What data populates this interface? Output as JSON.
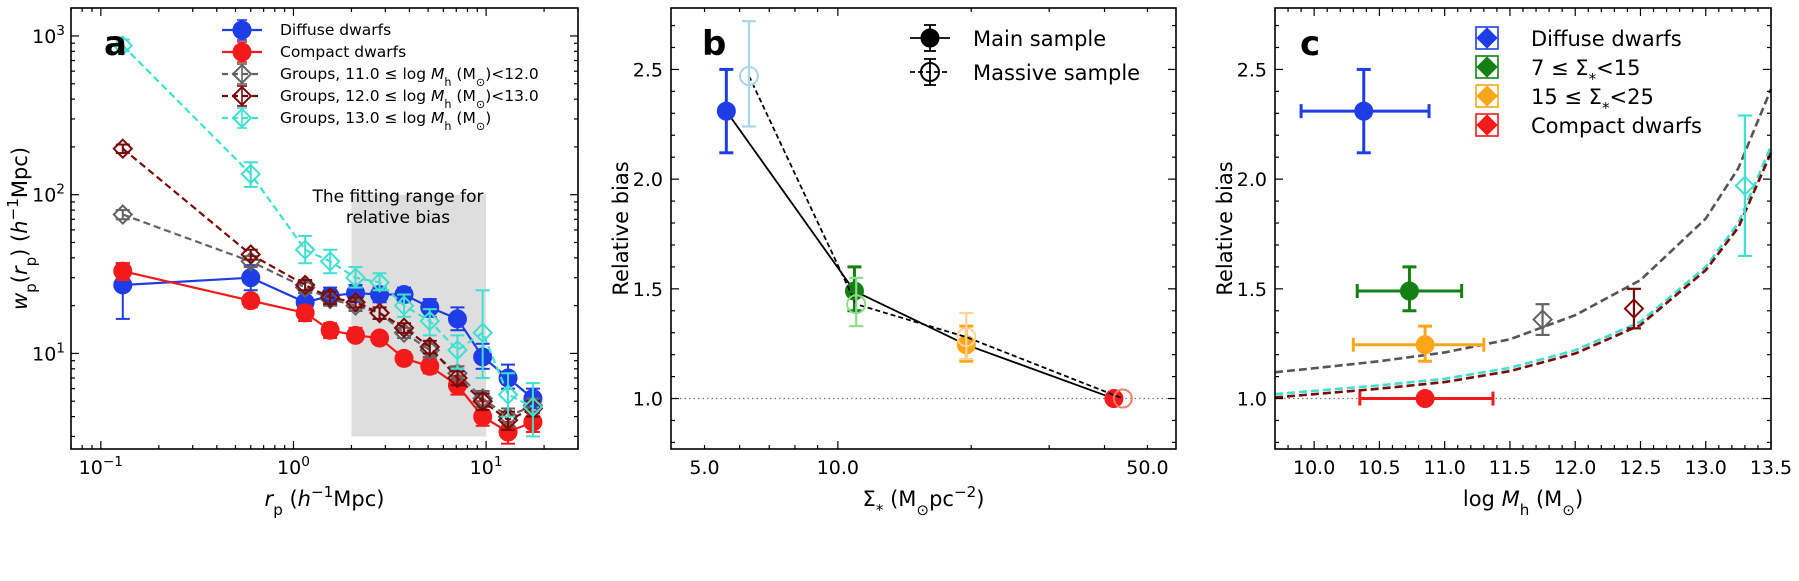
{
  "chart_data": [
    {
      "panel": "a",
      "type": "line",
      "xscale": "log",
      "yscale": "log",
      "xlim": [
        0.07,
        30
      ],
      "ylim": [
        2.5,
        1500
      ],
      "xticks": [
        {
          "v": 0.1,
          "label": "10⁻¹"
        },
        {
          "v": 1,
          "label": "10⁰"
        },
        {
          "v": 10,
          "label": "10¹"
        }
      ],
      "yticks": [
        {
          "v": 10,
          "label": "10¹"
        },
        {
          "v": 100,
          "label": "10²"
        },
        {
          "v": 1000,
          "label": "10³"
        }
      ],
      "xlabel": "r_p (h⁻¹Mpc)",
      "ylabel": "w_p(r_p) (h⁻¹Mpc)",
      "legend_position": "top-right",
      "annotation": {
        "line1": "The fitting range for",
        "line2": "relative bias",
        "x_range": [
          2,
          10
        ],
        "y_range": [
          3,
          100
        ]
      },
      "series": [
        {
          "name": "Diffuse dwarfs",
          "color": "#1f3de6",
          "marker": "filled-circle",
          "dash": "solid",
          "points": [
            [
              0.13,
              27,
              16.5,
              37
            ],
            [
              0.6,
              30,
              25,
              36
            ],
            [
              1.15,
              21,
              17.5,
              24
            ],
            [
              1.55,
              23,
              20,
              26
            ],
            [
              2.1,
              24,
              21,
              27
            ],
            [
              2.8,
              23.5,
              21,
              26
            ],
            [
              3.75,
              23.5,
              21,
              26
            ],
            [
              5.1,
              19.5,
              17,
              22
            ],
            [
              7.1,
              16.5,
              14,
              19.5
            ],
            [
              9.6,
              9.5,
              8,
              11.5
            ],
            [
              13,
              7,
              6,
              8.5
            ],
            [
              17.5,
              5.2,
              4.5,
              6
            ]
          ]
        },
        {
          "name": "Compact dwarfs",
          "color": "#f21a1a",
          "marker": "filled-circle",
          "dash": "solid",
          "points": [
            [
              0.13,
              33,
              29,
              37
            ],
            [
              0.6,
              21.5,
              19.5,
              23.5
            ],
            [
              1.15,
              18,
              16,
              20
            ],
            [
              1.55,
              14,
              12.5,
              15.5
            ],
            [
              2.1,
              13,
              12,
              14.5
            ],
            [
              2.8,
              12.5,
              11.5,
              13.5
            ],
            [
              3.75,
              9.3,
              8.5,
              10.2
            ],
            [
              5.1,
              8.3,
              7.5,
              9.2
            ],
            [
              7.1,
              6.3,
              5.5,
              7.2
            ],
            [
              9.6,
              4,
              3.5,
              5
            ],
            [
              13,
              3.2,
              2.7,
              3.7
            ],
            [
              17.5,
              3.7,
              3.2,
              4.3
            ]
          ]
        },
        {
          "name": "Groups, 11.0 ≤ log M_h (M☉)<12.0",
          "color": "#636363",
          "marker": "open-diamond",
          "dash": "dashed",
          "points": [
            [
              0.13,
              75,
              70,
              80
            ],
            [
              0.6,
              38,
              35,
              41
            ],
            [
              1.15,
              26,
              24,
              28
            ],
            [
              1.55,
              22,
              20,
              24
            ],
            [
              2.1,
              20,
              18.5,
              21.5
            ],
            [
              2.8,
              18,
              16.5,
              19.5
            ],
            [
              3.75,
              13.5,
              12.5,
              14.5
            ],
            [
              5.1,
              10.5,
              9.5,
              11.5
            ],
            [
              7.1,
              7.5,
              6.8,
              8.3
            ],
            [
              9.6,
              5.2,
              4.6,
              5.8
            ],
            [
              13,
              4,
              3.5,
              4.5
            ],
            [
              17.5,
              4.7,
              4.2,
              5.2
            ]
          ]
        },
        {
          "name": "Groups, 12.0 ≤ log M_h (M☉)<13.0",
          "color": "#7a0a0a",
          "marker": "open-diamond",
          "dash": "dashed",
          "points": [
            [
              0.13,
              195,
              183,
              207
            ],
            [
              0.6,
              42,
              39,
              45
            ],
            [
              1.15,
              27,
              25,
              29
            ],
            [
              1.55,
              22.5,
              20.5,
              24.5
            ],
            [
              2.1,
              21,
              19.5,
              22.5
            ],
            [
              2.8,
              18,
              16.5,
              19.5
            ],
            [
              3.75,
              14.5,
              13.5,
              15.5
            ],
            [
              5.1,
              11,
              10,
              12
            ],
            [
              7.1,
              7,
              6.3,
              7.7
            ],
            [
              9.6,
              5,
              4.4,
              5.6
            ],
            [
              13,
              3.8,
              3.3,
              4.3
            ],
            [
              17.5,
              4.5,
              4,
              5
            ]
          ]
        },
        {
          "name": "Groups, 13.0 ≤ log M_h (M☉)",
          "color": "#40e0d0",
          "marker": "open-diamond",
          "dash": "dashed",
          "points": [
            [
              0.13,
              870,
              800,
              950
            ],
            [
              0.6,
              135,
              112,
              160
            ],
            [
              1.15,
              45,
              37,
              55
            ],
            [
              1.55,
              38,
              32,
              45
            ],
            [
              2.1,
              30,
              26,
              35
            ],
            [
              2.8,
              28,
              25,
              32
            ],
            [
              3.75,
              20,
              17,
              23.5
            ],
            [
              5.1,
              16,
              13,
              19
            ],
            [
              7.1,
              10.5,
              8,
              13
            ],
            [
              9.6,
              13.5,
              7,
              25
            ],
            [
              13,
              5.5,
              4,
              7.5
            ],
            [
              17.5,
              4.6,
              3,
              6.5
            ]
          ]
        }
      ]
    },
    {
      "panel": "b",
      "type": "line",
      "xscale": "log",
      "xlim": [
        4.2,
        58
      ],
      "ylim": [
        0.77,
        2.78
      ],
      "xticks": [
        {
          "v": 5,
          "label": "5.0"
        },
        {
          "v": 10,
          "label": "10.0"
        },
        {
          "v": 50,
          "label": "50.0"
        }
      ],
      "yticks": [
        {
          "v": 1.0,
          "label": "1.0"
        },
        {
          "v": 1.5,
          "label": "1.5"
        },
        {
          "v": 2.0,
          "label": "2.0"
        },
        {
          "v": 2.5,
          "label": "2.5"
        }
      ],
      "xlabel": "Σ* (M☉pc⁻²)",
      "ylabel": "Relative bias",
      "reference_line_y": 1.0,
      "legend_position": "top-right",
      "series": [
        {
          "name": "Main sample",
          "color": "#000000",
          "dash": "solid",
          "marker": "filled-circle",
          "points": [
            {
              "x": 5.6,
              "y": 2.31,
              "ylo": 2.12,
              "yhi": 2.5,
              "color": "#1f3de6"
            },
            {
              "x": 10.9,
              "y": 1.49,
              "ylo": 1.4,
              "yhi": 1.6,
              "color": "#148014"
            },
            {
              "x": 19.5,
              "y": 1.245,
              "ylo": 1.17,
              "yhi": 1.33,
              "color": "#ffa519"
            },
            {
              "x": 42,
              "y": 1.0,
              "ylo": 1.0,
              "yhi": 1.0,
              "color": "#f21a1a"
            }
          ]
        },
        {
          "name": "Massive sample",
          "color": "#000000",
          "dash": "dashed",
          "marker": "open-circle",
          "points": [
            {
              "x": 6.3,
              "y": 2.47,
              "ylo": 2.24,
              "yhi": 2.72,
              "color": "#a9d6ea"
            },
            {
              "x": 11.0,
              "y": 1.43,
              "ylo": 1.33,
              "yhi": 1.55,
              "color": "#8ed98e"
            },
            {
              "x": 19.5,
              "y": 1.28,
              "ylo": 1.18,
              "yhi": 1.39,
              "color": "#ffd399"
            },
            {
              "x": 44,
              "y": 1.0,
              "ylo": 1.0,
              "yhi": 1.0,
              "color": "#f07d68"
            }
          ]
        }
      ]
    },
    {
      "panel": "c",
      "type": "scatter",
      "xlim": [
        9.7,
        13.5
      ],
      "ylim": [
        0.77,
        2.78
      ],
      "xticks": [
        {
          "v": 10.0,
          "label": "10.0"
        },
        {
          "v": 10.5,
          "label": "10.5"
        },
        {
          "v": 11.0,
          "label": "11.0"
        },
        {
          "v": 11.5,
          "label": "11.5"
        },
        {
          "v": 12.0,
          "label": "12.0"
        },
        {
          "v": 12.5,
          "label": "12.5"
        },
        {
          "v": 13.0,
          "label": "13.0"
        },
        {
          "v": 13.5,
          "label": "13.5"
        }
      ],
      "yticks": [
        {
          "v": 1.0,
          "label": "1.0"
        },
        {
          "v": 1.5,
          "label": "1.5"
        },
        {
          "v": 2.0,
          "label": "2.0"
        },
        {
          "v": 2.5,
          "label": "2.5"
        }
      ],
      "xlabel": "log M_h (M☉)",
      "ylabel": "Relative bias",
      "reference_line_y": 1.0,
      "legend_position": "top-right",
      "legend": [
        {
          "name": "Diffuse dwarfs",
          "color": "#1f3de6"
        },
        {
          "name": "7 ≤ Σ*<15",
          "color": "#148014"
        },
        {
          "name": "15 ≤ Σ*<25",
          "color": "#ffa519"
        },
        {
          "name": "Compact dwarfs",
          "color": "#f21a1a"
        }
      ],
      "points": [
        {
          "x": 10.38,
          "xlo": 9.9,
          "xhi": 10.88,
          "y": 2.31,
          "ylo": 2.12,
          "yhi": 2.5,
          "color": "#1f3de6",
          "marker": "filled-circle"
        },
        {
          "x": 10.73,
          "xlo": 10.33,
          "xhi": 11.13,
          "y": 1.49,
          "ylo": 1.4,
          "yhi": 1.6,
          "color": "#148014",
          "marker": "filled-circle"
        },
        {
          "x": 10.85,
          "xlo": 10.3,
          "xhi": 11.3,
          "y": 1.245,
          "ylo": 1.17,
          "yhi": 1.33,
          "color": "#ffa519",
          "marker": "filled-circle"
        },
        {
          "x": 10.85,
          "xlo": 10.35,
          "xhi": 11.37,
          "y": 1.0,
          "ylo": 1.0,
          "yhi": 1.0,
          "color": "#f21a1a",
          "marker": "filled-circle"
        },
        {
          "x": 11.75,
          "y": 1.36,
          "ylo": 1.29,
          "yhi": 1.43,
          "color": "#636363",
          "marker": "open-diamond"
        },
        {
          "x": 12.45,
          "y": 1.41,
          "ylo": 1.32,
          "yhi": 1.5,
          "color": "#7a0a0a",
          "marker": "open-diamond"
        },
        {
          "x": 13.3,
          "y": 1.97,
          "ylo": 1.65,
          "yhi": 2.29,
          "color": "#40e0d0",
          "marker": "open-diamond"
        }
      ],
      "curves": [
        {
          "color": "#555555",
          "dash": "dashed",
          "points": [
            [
              9.7,
              1.12
            ],
            [
              10.0,
              1.138
            ],
            [
              10.5,
              1.17
            ],
            [
              11.0,
              1.21
            ],
            [
              11.5,
              1.27
            ],
            [
              12.0,
              1.38
            ],
            [
              12.5,
              1.54
            ],
            [
              13.0,
              1.82
            ],
            [
              13.25,
              2.05
            ],
            [
              13.5,
              2.41
            ]
          ]
        },
        {
          "color": "#40e0d0",
          "dash": "dashed",
          "points": [
            [
              9.7,
              1.02
            ],
            [
              10.0,
              1.035
            ],
            [
              10.5,
              1.06
            ],
            [
              11.0,
              1.09
            ],
            [
              11.5,
              1.14
            ],
            [
              12.0,
              1.22
            ],
            [
              12.5,
              1.35
            ],
            [
              13.0,
              1.6
            ],
            [
              13.25,
              1.8
            ],
            [
              13.5,
              2.15
            ]
          ]
        },
        {
          "color": "#7a0a0a",
          "dash": "dashed",
          "points": [
            [
              9.7,
              1.005
            ],
            [
              10.0,
              1.02
            ],
            [
              10.5,
              1.045
            ],
            [
              11.0,
              1.075
            ],
            [
              11.5,
              1.125
            ],
            [
              12.0,
              1.205
            ],
            [
              12.5,
              1.335
            ],
            [
              13.0,
              1.585
            ],
            [
              13.25,
              1.78
            ],
            [
              13.5,
              2.12
            ]
          ]
        }
      ]
    }
  ]
}
